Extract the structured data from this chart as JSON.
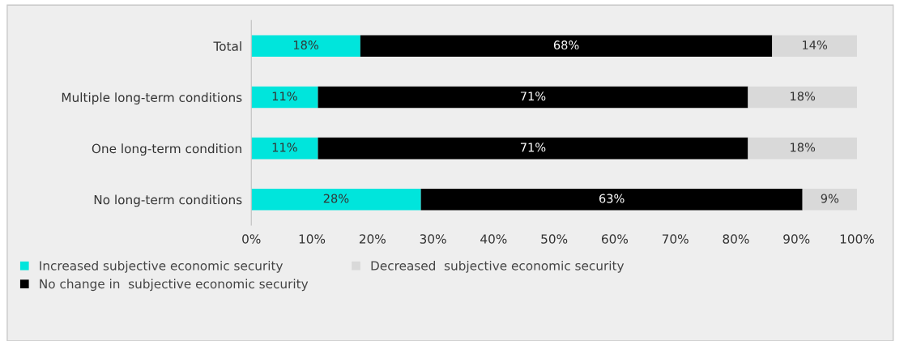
{
  "chart_data": {
    "type": "bar",
    "orientation": "horizontal",
    "stacked": true,
    "categories": [
      "Total",
      "Multiple long-term conditions",
      "One long-term condition",
      "No long-term conditions"
    ],
    "series": [
      {
        "name": "Increased subjective economic security",
        "color": "#00e5dc",
        "values": [
          18,
          11,
          11,
          28
        ],
        "value_labels": [
          "18%",
          "11%",
          "11%",
          "28%"
        ]
      },
      {
        "name": "No change in  subjective economic security",
        "color": "#000000",
        "values": [
          68,
          71,
          71,
          63
        ],
        "value_labels": [
          "68%",
          "71%",
          "71%",
          "63%"
        ]
      },
      {
        "name": "Decreased  subjective economic security",
        "color": "#d9d9d9",
        "values": [
          14,
          18,
          18,
          9
        ],
        "value_labels": [
          "14%",
          "18%",
          "18%",
          "9%"
        ]
      }
    ],
    "xlim": [
      0,
      100
    ],
    "xticks": [
      {
        "value": 0,
        "label": "0%"
      },
      {
        "value": 10,
        "label": "10%"
      },
      {
        "value": 20,
        "label": "20%"
      },
      {
        "value": 30,
        "label": "30%"
      },
      {
        "value": 40,
        "label": "40%"
      },
      {
        "value": 50,
        "label": "50%"
      },
      {
        "value": 60,
        "label": "60%"
      },
      {
        "value": 70,
        "label": "70%"
      },
      {
        "value": 80,
        "label": "80%"
      },
      {
        "value": 90,
        "label": "90%"
      },
      {
        "value": 100,
        "label": "100%"
      }
    ],
    "grid": false,
    "legend": "bottom"
  }
}
